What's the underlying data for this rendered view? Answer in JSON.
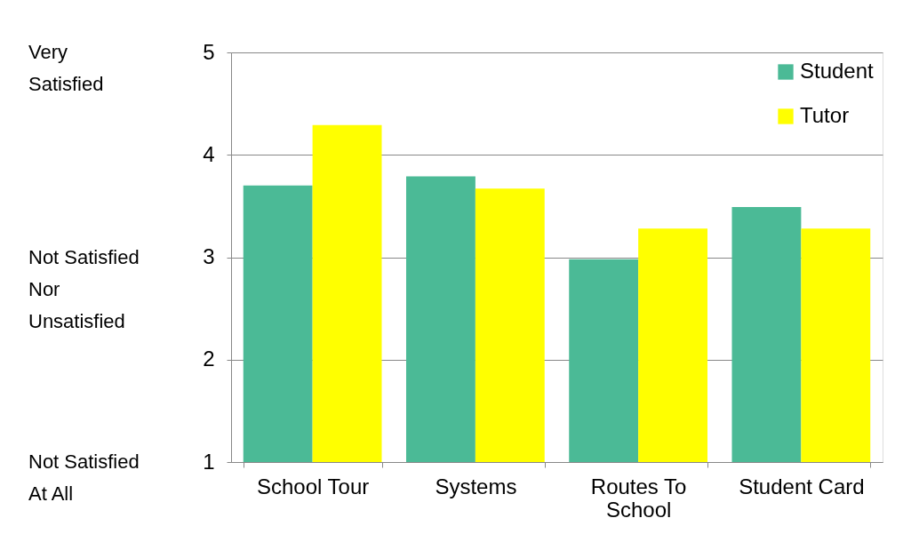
{
  "chart_data": {
    "type": "bar",
    "categories": [
      "School Tour",
      "Systems",
      "Routes To School",
      "Student Card"
    ],
    "series": [
      {
        "name": "Student",
        "color": "#4bba96",
        "values": [
          3.7,
          3.79,
          2.98,
          3.49
        ]
      },
      {
        "name": "Tutor",
        "color": "#ffff00",
        "values": [
          4.29,
          3.67,
          3.28,
          3.28
        ]
      }
    ],
    "ylim": [
      1,
      5
    ],
    "yticks": [
      1,
      2,
      3,
      4,
      5
    ],
    "grid": "y",
    "legend": "top right",
    "annotations": [
      "Very Satisfied",
      "Not Satisfied Nor Unsatisfied",
      "Not Satisfied At All"
    ]
  }
}
